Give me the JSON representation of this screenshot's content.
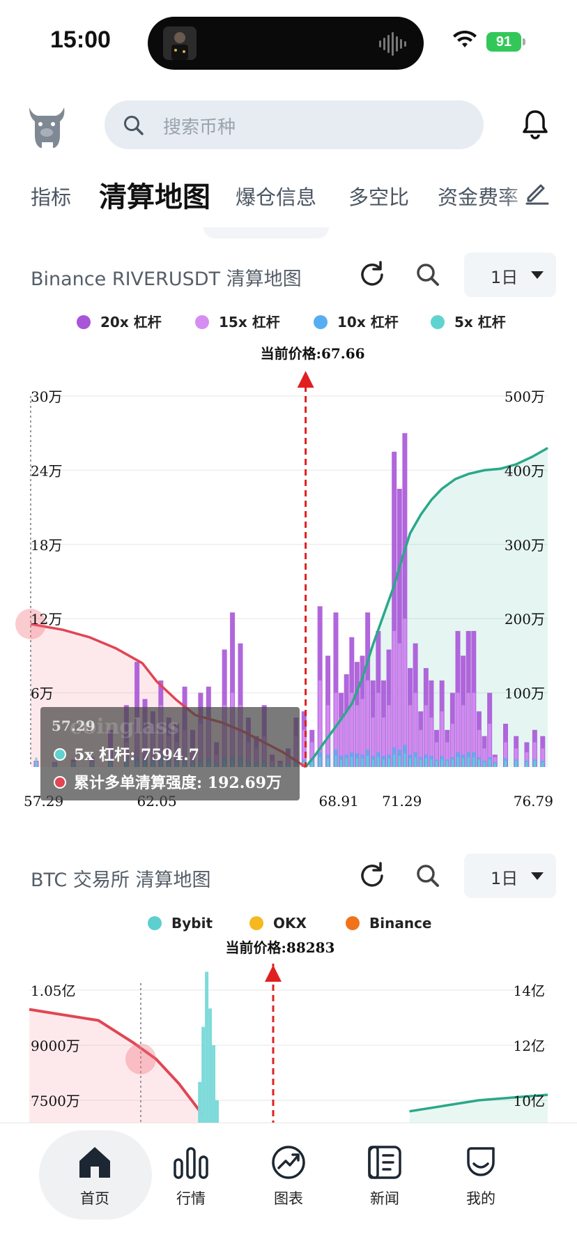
{
  "status_bar": {
    "time": "15:00",
    "battery": "91"
  },
  "search": {
    "placeholder": "搜索币种"
  },
  "tabs": [
    "指标",
    "清算地图",
    "爆仓信息",
    "多空比",
    "资金费率"
  ],
  "active_tab": "清算地图",
  "card1": {
    "title": "Binance RIVERUSDT 清算地图",
    "range": "1日",
    "legend": [
      {
        "label": "20x 杠杆",
        "color": "#a855d8"
      },
      {
        "label": "15x 杠杆",
        "color": "#d58df2"
      },
      {
        "label": "10x 杠杆",
        "color": "#56aef0"
      },
      {
        "label": "5x 杠杆",
        "color": "#5fd3cf"
      }
    ],
    "tooltip": {
      "price": "57.29",
      "line1": "5x 杠杆: 7594.7",
      "line2": "累计多单清算强度: 192.69万",
      "watermark": "coinglass"
    }
  },
  "card2": {
    "title": "BTC 交易所  清算地图",
    "range": "1日",
    "legend": [
      {
        "label": "Bybit",
        "color": "#5ccfcf"
      },
      {
        "label": "OKX",
        "color": "#f5b81e"
      },
      {
        "label": "Binance",
        "color": "#f07319"
      }
    ]
  },
  "chart_data": [
    {
      "type": "bar",
      "title": "Binance RIVERUSDT 清算地图",
      "current_price_label": "当前价格:67.66",
      "current_price": 67.66,
      "x_range": [
        57.29,
        76.79
      ],
      "x_tick_labels": [
        "57.29",
        "62.05",
        "68.91",
        "71.29",
        "76.79"
      ],
      "x_ticks": [
        57.29,
        62.05,
        68.91,
        71.29,
        76.79
      ],
      "y_left_ticks": [
        "6万",
        "12万",
        "18万",
        "24万",
        "30万"
      ],
      "y_left_values": [
        60000,
        120000,
        180000,
        240000,
        300000
      ],
      "y_left_range": [
        0,
        300000
      ],
      "y_right_ticks": [
        "100万",
        "200万",
        "300万",
        "400万",
        "500万"
      ],
      "y_right_values": [
        1000000,
        2000000,
        3000000,
        4000000,
        5000000
      ],
      "y_right_range": [
        0,
        5000000
      ],
      "bars": {
        "x": [
          57.5,
          58.2,
          58.9,
          59.6,
          60.3,
          60.9,
          61.3,
          61.6,
          61.9,
          62.2,
          62.5,
          62.8,
          63.1,
          63.4,
          63.7,
          64.0,
          64.3,
          64.6,
          64.9,
          65.2,
          65.5,
          65.8,
          66.1,
          66.4,
          66.7,
          67.0,
          67.3,
          67.6,
          67.9,
          68.2,
          68.5,
          68.8,
          69.0,
          69.2,
          69.4,
          69.6,
          69.8,
          70.0,
          70.2,
          70.4,
          70.6,
          70.8,
          71.0,
          71.2,
          71.4,
          71.6,
          71.8,
          72.0,
          72.2,
          72.4,
          72.6,
          72.8,
          73.0,
          73.2,
          73.4,
          73.6,
          73.8,
          74.0,
          74.2,
          74.4,
          74.6,
          74.8,
          75.2,
          75.6,
          76.0,
          76.3,
          76.6
        ],
        "series": [
          {
            "name": "20x 杠杆",
            "values": [
              5000,
              4000,
              6000,
              8000,
              30000,
              50000,
              85000,
              55000,
              45000,
              70000,
              40000,
              35000,
              65000,
              30000,
              60000,
              65000,
              20000,
              95000,
              125000,
              100000,
              40000,
              25000,
              50000,
              10000,
              5000,
              15000,
              40000,
              45000,
              30000,
              130000,
              90000,
              125000,
              60000,
              75000,
              105000,
              85000,
              90000,
              125000,
              70000,
              110000,
              70000,
              95000,
              255000,
              225000,
              270000,
              80000,
              100000,
              45000,
              80000,
              70000,
              30000,
              70000,
              30000,
              60000,
              110000,
              90000,
              110000,
              110000,
              45000,
              25000,
              60000,
              10000,
              35000,
              25000,
              20000,
              30000,
              25000
            ]
          },
          {
            "name": "15x 杠杆",
            "values": [
              4000,
              3000,
              4000,
              5000,
              15000,
              20000,
              40000,
              30000,
              35000,
              50000,
              25000,
              20000,
              30000,
              15000,
              35000,
              40000,
              10000,
              50000,
              60000,
              50000,
              20000,
              15000,
              25000,
              5000,
              3000,
              10000,
              25000,
              30000,
              20000,
              70000,
              50000,
              60000,
              40000,
              45000,
              60000,
              50000,
              55000,
              70000,
              40000,
              60000,
              40000,
              50000,
              110000,
              100000,
              120000,
              50000,
              60000,
              30000,
              50000,
              40000,
              20000,
              45000,
              20000,
              35000,
              60000,
              50000,
              60000,
              60000,
              30000,
              15000,
              35000,
              8000,
              20000,
              15000,
              12000,
              20000,
              15000
            ]
          },
          {
            "name": "10x 杠杆",
            "values": [
              2000,
              1500,
              2000,
              2500,
              5000,
              6000,
              8000,
              6000,
              6000,
              8000,
              5000,
              5000,
              6000,
              4000,
              6000,
              7000,
              3000,
              8000,
              9000,
              8000,
              5000,
              4000,
              5000,
              2000,
              1500,
              3000,
              5000,
              6000,
              5000,
              12000,
              10000,
              14000,
              9000,
              10000,
              12000,
              11000,
              10000,
              14000,
              9000,
              12000,
              9000,
              10000,
              16000,
              14000,
              18000,
              10000,
              12000,
              8000,
              10000,
              9000,
              6000,
              9000,
              6000,
              8000,
              12000,
              10000,
              12000,
              12000,
              8000,
              5000,
              8000,
              4000,
              7000,
              6000,
              5000,
              6000,
              5000
            ]
          },
          {
            "name": "5x 杠杆",
            "values": [
              7594.7,
              3000,
              3000,
              3000,
              4000,
              4000,
              5000,
              4000,
              4000,
              5000,
              4000,
              4000,
              4000,
              3000,
              4000,
              4000,
              3000,
              5000,
              5000,
              5000,
              4000,
              3000,
              4000,
              2000,
              1500,
              3000,
              4000,
              4000,
              4000,
              8000,
              7000,
              9000,
              6000,
              7000,
              8000,
              7000,
              7000,
              9000,
              6000,
              8000,
              6000,
              7000,
              10000,
              9000,
              11000,
              7000,
              8000,
              6000,
              7000,
              6000,
              5000,
              6000,
              5000,
              6000,
              8000,
              7000,
              8000,
              8000,
              6000,
              4000,
              6000,
              3000,
              5000,
              5000,
              4000,
              5000,
              4000
            ]
          }
        ]
      },
      "cumulative_long_liquidation": {
        "name": "累计多单清算强度",
        "x": [
          57.29,
          58.5,
          59.5,
          60.5,
          61.5,
          62.05,
          62.8,
          63.5,
          64.5,
          65.3,
          66.0,
          66.8,
          67.4,
          67.66
        ],
        "values": [
          1926900,
          1850000,
          1750000,
          1600000,
          1400000,
          1150000,
          900000,
          700000,
          600000,
          480000,
          350000,
          200000,
          60000,
          0
        ]
      },
      "cumulative_short_liquidation": {
        "x": [
          67.66,
          68.0,
          68.5,
          68.91,
          69.4,
          69.8,
          70.2,
          70.6,
          71.0,
          71.29,
          71.6,
          72.0,
          72.4,
          72.8,
          73.3,
          73.8,
          74.4,
          75.0,
          75.6,
          76.2,
          76.79
        ],
        "values": [
          0,
          150000,
          400000,
          600000,
          850000,
          1200000,
          1650000,
          2050000,
          2450000,
          2800000,
          3150000,
          3400000,
          3600000,
          3750000,
          3880000,
          3950000,
          4000000,
          4020000,
          4080000,
          4180000,
          4300000
        ]
      }
    },
    {
      "type": "bar",
      "title": "BTC 交易所  清算地图",
      "current_price_label": "当前价格:88283",
      "current_price": 88283,
      "y_left_ticks": [
        "7500万",
        "9000万",
        "1.05亿"
      ],
      "y_left_values": [
        75000000,
        90000000,
        105000000
      ],
      "y_right_ticks": [
        "10亿",
        "12亿",
        "14亿"
      ],
      "y_right_values": [
        1000000000,
        1200000000,
        1400000000
      ],
      "x_range": [
        86000,
        90500
      ],
      "bars": {
        "x": [
          87450,
          87480,
          87510,
          87540,
          87570,
          87600,
          87630,
          87660,
          88500,
          88700
        ],
        "series": [
          {
            "name": "Bybit",
            "values": [
              60000000,
              80000000,
              95000000,
              110000000,
              100000000,
              90000000,
              75000000,
              65000000,
              65000000,
              58000000
            ]
          }
        ]
      },
      "cumulative_long_liquidation": {
        "x": [
          86000,
          86300,
          86600,
          86900,
          87100,
          87300,
          87500
        ],
        "values": [
          1330000000,
          1310000000,
          1290000000,
          1210000000,
          1150000000,
          1060000000,
          950000000
        ]
      },
      "cumulative_short_liquidation": {
        "x": [
          89300,
          89600,
          89900,
          90200,
          90500
        ],
        "values": [
          960000000,
          980000000,
          1000000000,
          1010000000,
          1020000000
        ]
      }
    }
  ]
}
